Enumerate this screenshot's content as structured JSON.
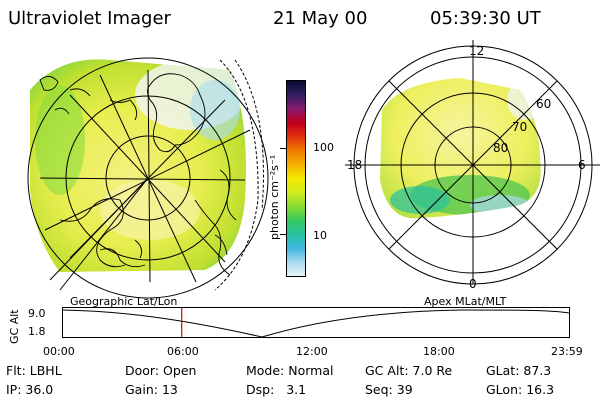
{
  "header": {
    "title": "Ultraviolet Imager",
    "date": "21 May 00",
    "time": "05:39:30 UT"
  },
  "colorbar": {
    "unit_label": "photon cm⁻²s⁻¹",
    "ticks": [
      "100",
      "10"
    ],
    "colors": [
      "#0a0a30",
      "#302060",
      "#8a1a70",
      "#c0001a",
      "#e03010",
      "#f07a00",
      "#f4b000",
      "#f4e800",
      "#d0ee20",
      "#88dc30",
      "#38c860",
      "#28c0a0",
      "#40b8e0",
      "#a8d8f0",
      "#e8f4f8"
    ]
  },
  "left_map": {
    "frame_label": "Geographic Lat/Lon"
  },
  "right_map": {
    "frame_label": "Apex MLat/MLT",
    "mlt_labels": {
      "top": "12",
      "left": "18",
      "right": "6",
      "bottom": "0"
    },
    "lat_labels": [
      "60",
      "70",
      "80"
    ]
  },
  "timeline": {
    "axis_title": "GC Alt",
    "y_ticks": [
      "9.0",
      "1.8"
    ],
    "x_ticks": [
      "00:00",
      "06:00",
      "12:00",
      "18:00",
      "23:59"
    ],
    "current_time_fraction": 0.236
  },
  "info": {
    "filter": {
      "label": "Flt:",
      "value": "LBHL"
    },
    "ip": {
      "label": "IP:",
      "value": "36.0"
    },
    "door": {
      "label": "Door:",
      "value": "Open"
    },
    "gain": {
      "label": "Gain:",
      "value": "13"
    },
    "mode": {
      "label": "Mode:",
      "value": "Normal"
    },
    "dsp": {
      "label": "Dsp:",
      "value": "3.1"
    },
    "gc_alt": {
      "label": "GC Alt:",
      "value": "7.0 Re"
    },
    "seq": {
      "label": "Seq:",
      "value": "39"
    },
    "glat": {
      "label": "GLat:",
      "value": "87.3"
    },
    "glon": {
      "label": "GLon:",
      "value": "16.3"
    }
  }
}
